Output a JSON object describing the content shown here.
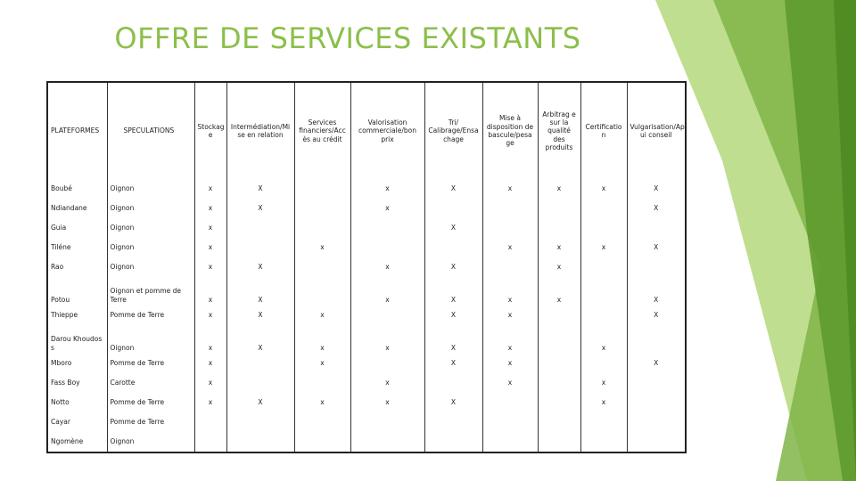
{
  "title": "OFFRE DE SERVICES EXISTANTS",
  "colors": {
    "title": "#8cbf4a",
    "accent_dark": "#5e9b2e",
    "accent_light": "#a9d36a"
  },
  "headers": [
    "PLATEFORMES",
    "SPECULATIONS",
    "Stockag e",
    "Intermédiation/Mi se en relation",
    "Services financiers/Acc ès au crédit",
    "Valorisation commerciale/bon prix",
    "Tri/ Calibrage/Ensa chage",
    "Mise à disposition de bascule/pesa ge",
    "Arbitrag e sur la qualité des produits",
    "Certificatio n",
    "Vulgarisation/App ui conseil"
  ],
  "rows": [
    {
      "platform": "Boubé",
      "speculation": "Oignon",
      "marks": [
        "x",
        "X",
        "",
        "x",
        "X",
        "x",
        "x",
        "x",
        "X"
      ]
    },
    {
      "platform": "Ndiandane",
      "speculation": "Oignon",
      "marks": [
        "x",
        "X",
        "",
        "x",
        "",
        "",
        "",
        "",
        "X"
      ]
    },
    {
      "platform": "Guia",
      "speculation": "Oignon",
      "marks": [
        "x",
        "",
        "",
        "",
        "X",
        "",
        "",
        "",
        ""
      ]
    },
    {
      "platform": "Tiléne",
      "speculation": "Oignon",
      "marks": [
        "x",
        "",
        "x",
        "",
        "",
        "x",
        "x",
        "x",
        "X"
      ]
    },
    {
      "platform": "Rao",
      "speculation": "Oignon",
      "marks": [
        "x",
        "X",
        "",
        "x",
        "X",
        "",
        "x",
        "",
        ""
      ]
    },
    {
      "platform": "Potou",
      "speculation": "Oignon et pomme de Terre",
      "marks": [
        "x",
        "X",
        "",
        "x",
        "X",
        "x",
        "x",
        "",
        "X"
      ]
    },
    {
      "platform": "Thieppe",
      "speculation": "Pomme de Terre",
      "marks": [
        "x",
        "X",
        "x",
        "",
        "X",
        "x",
        "",
        "",
        "X"
      ]
    },
    {
      "platform": "Darou Khoudos s",
      "speculation": "Oignon",
      "marks": [
        "x",
        "X",
        "x",
        "x",
        "X",
        "x",
        "",
        "x",
        ""
      ]
    },
    {
      "platform": "Mboro",
      "speculation": "Pomme de Terre",
      "marks": [
        "x",
        "",
        "x",
        "",
        "X",
        "x",
        "",
        "",
        "X"
      ]
    },
    {
      "platform": "Fass Boy",
      "speculation": "Carotte",
      "marks": [
        "x",
        "",
        "",
        "x",
        "",
        "x",
        "",
        "x",
        ""
      ]
    },
    {
      "platform": "Notto",
      "speculation": "Pomme de Terre",
      "marks": [
        "x",
        "X",
        "x",
        "x",
        "X",
        "",
        "",
        "x",
        ""
      ]
    },
    {
      "platform": "Cayar",
      "speculation": "Pomme de Terre",
      "marks": [
        "",
        "",
        "",
        "",
        "",
        "",
        "",
        "",
        ""
      ]
    },
    {
      "platform": "Ngomène",
      "speculation": "Oignon",
      "marks": [
        "",
        "",
        "",
        "",
        "",
        "",
        "",
        "",
        ""
      ]
    }
  ]
}
